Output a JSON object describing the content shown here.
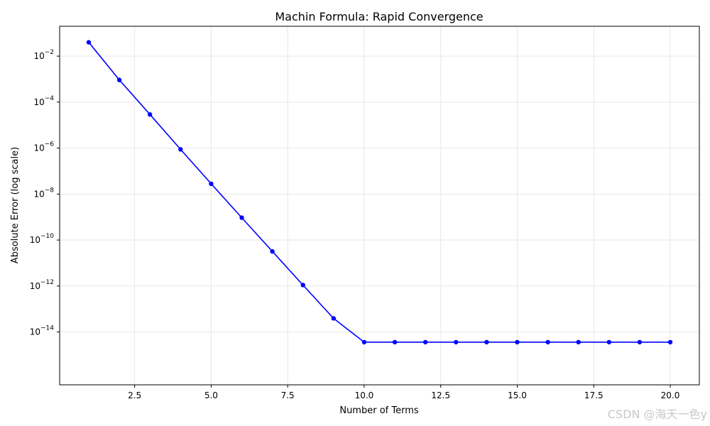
{
  "chart_data": {
    "type": "line",
    "title": "Machin Formula: Rapid Convergence",
    "xlabel": "Number of Terms",
    "ylabel": "Absolute Error (log scale)",
    "yscale": "log",
    "xlim": [
      0.05,
      20.95
    ],
    "ylim_log10": [
      -16.3,
      -0.7
    ],
    "xticks": [
      2.5,
      5.0,
      7.5,
      10.0,
      12.5,
      15.0,
      17.5,
      20.0
    ],
    "xtick_labels": [
      "2.5",
      "5.0",
      "7.5",
      "10.0",
      "12.5",
      "15.0",
      "17.5",
      "20.0"
    ],
    "yticks_exp": [
      -2,
      -4,
      -6,
      -8,
      -10,
      -12,
      -14
    ],
    "ytick_base": "10",
    "ytick_exponents": [
      "−2",
      "−4",
      "−6",
      "−8",
      "−10",
      "−12",
      "−14"
    ],
    "grid": true,
    "color": "#0000ff",
    "series": [
      {
        "x": [
          1,
          2,
          3,
          4,
          5,
          6,
          7,
          8,
          9,
          10,
          11,
          12,
          13,
          14,
          15,
          16,
          17,
          18,
          19,
          20
        ],
        "y": [
          0.04,
          0.00092,
          2.9e-05,
          8.8e-07,
          2.8e-08,
          9.4e-10,
          3.2e-11,
          1.1e-12,
          3.9e-14,
          3.6e-15,
          3.6e-15,
          3.6e-15,
          3.6e-15,
          3.6e-15,
          3.6e-15,
          3.6e-15,
          3.6e-15,
          3.6e-15,
          3.6e-15,
          3.6e-15
        ]
      }
    ]
  },
  "watermark": "CSDN @海天一色y"
}
